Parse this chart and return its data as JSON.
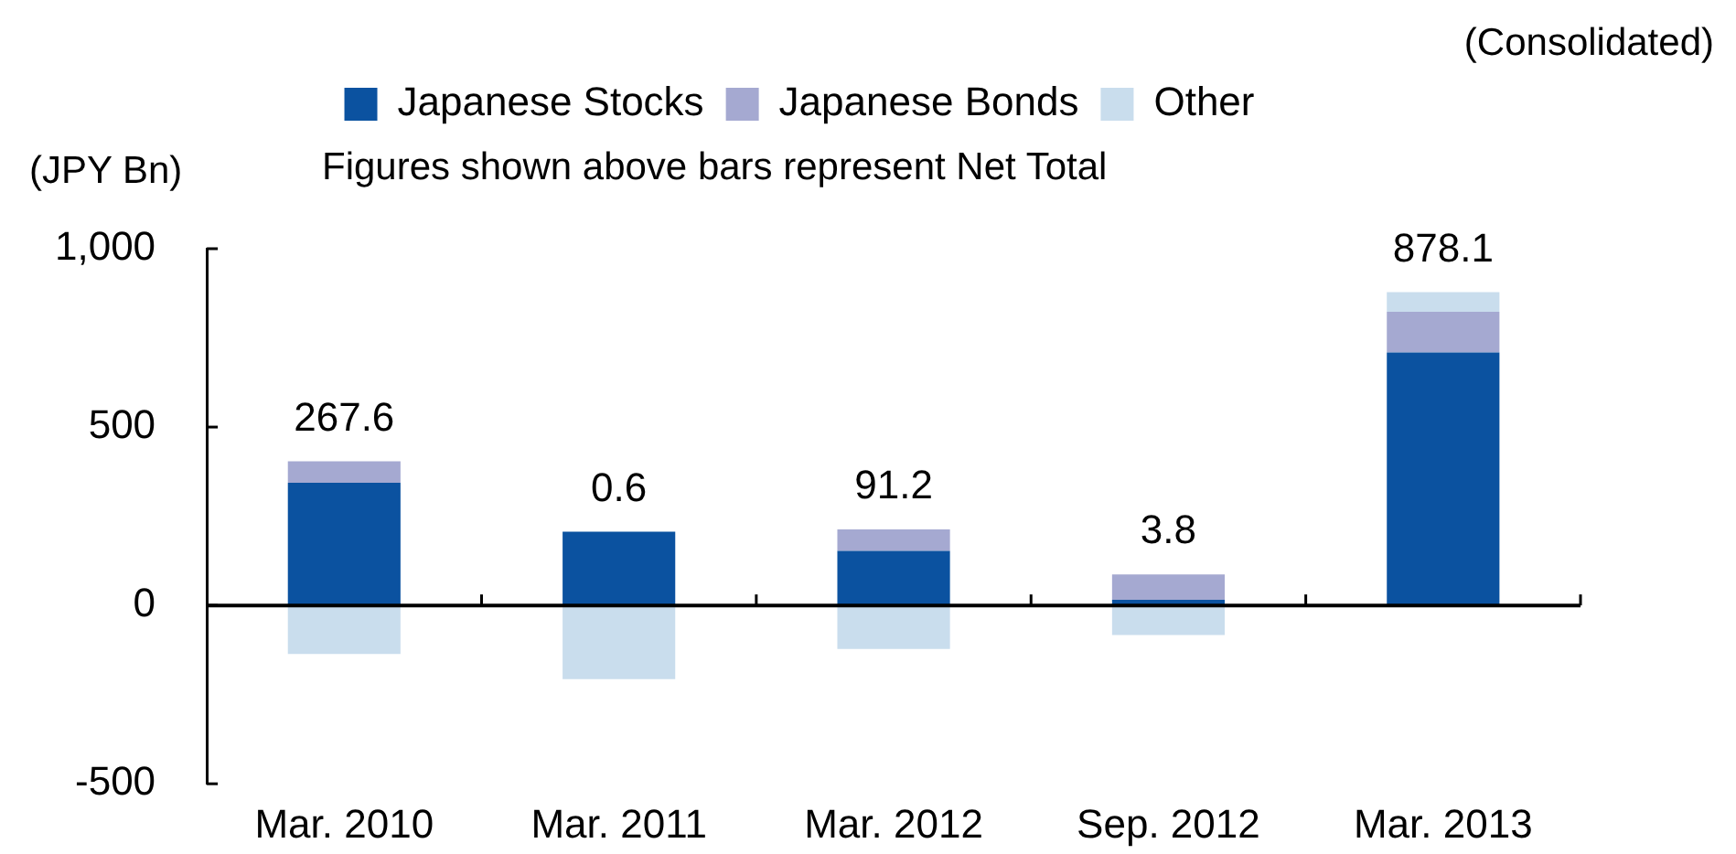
{
  "chart_data": {
    "type": "bar",
    "stacked": true,
    "ylabel": "(JPY Bn)",
    "annotations": [
      "(Consolidated)",
      "Figures shown above bars represent Net Total"
    ],
    "categories": [
      "Mar. 2010",
      "Mar. 2011",
      "Mar. 2012",
      "Sep. 2012",
      "Mar. 2013"
    ],
    "series": [
      {
        "name": "Japanese Stocks",
        "color": "#0b52a0",
        "values": [
          344,
          207,
          153,
          16,
          709
        ]
      },
      {
        "name": "Japanese Bonds",
        "color": "#a5a9d1",
        "values": [
          60,
          -5,
          60,
          71,
          114
        ]
      },
      {
        "name": "Other",
        "color": "#c9dded",
        "values": [
          -136.4,
          -201.4,
          -121.8,
          -83.2,
          55.1
        ]
      }
    ],
    "totals": [
      "267.6",
      "0.6",
      "91.2",
      "3.8",
      "878.1"
    ],
    "ylim": [
      -500,
      1000
    ],
    "yticks": [
      {
        "value": -500,
        "label": "-500"
      },
      0,
      {
        "value": 500,
        "label": "500"
      },
      {
        "value": 1000,
        "label": "1,000"
      }
    ],
    "ref_lines": [
      {
        "axis": "y",
        "value": 0,
        "color": "#000000",
        "line_style": "solid"
      }
    ],
    "grid": false,
    "legend": "top"
  }
}
